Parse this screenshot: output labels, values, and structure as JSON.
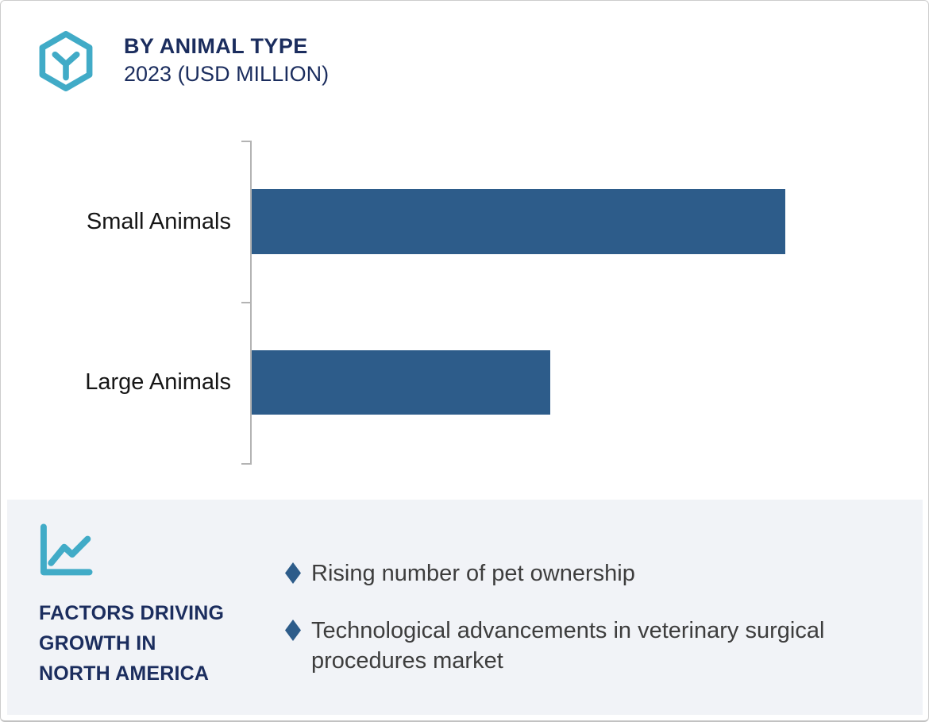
{
  "header": {
    "icon": "hexagon-box-y-icon",
    "title": "BY ANIMAL TYPE",
    "subtitle": "2023 (USD MILLION)"
  },
  "chart_data": {
    "type": "bar",
    "orientation": "horizontal",
    "title": "BY ANIMAL TYPE",
    "subtitle": "2023 (USD MILLION)",
    "categories": [
      "Small Animals",
      "Large Animals"
    ],
    "values_relative": [
      100,
      56
    ],
    "value_labels_shown": false,
    "value_axis_shown": false,
    "grid": false,
    "legend": "none",
    "bar_color": "#2d5c8a",
    "axis_color": "#b3b3b3",
    "units": "USD Million (numeric values not labeled in figure)"
  },
  "factors_panel": {
    "icon": "line-chart-icon",
    "heading": "FACTORS DRIVING\nGROWTH IN\nNORTH AMERICA",
    "bullets": [
      "Rising number of pet ownership",
      "Technological advancements in veterinary surgical procedures market"
    ],
    "bullet_marker": "diamond",
    "bullet_marker_color": "#2d5c8a",
    "background_color": "#f1f3f7"
  },
  "colors": {
    "navy": "#1b2d5e",
    "teal": "#41abc7",
    "bar_blue": "#2d5c8a"
  }
}
